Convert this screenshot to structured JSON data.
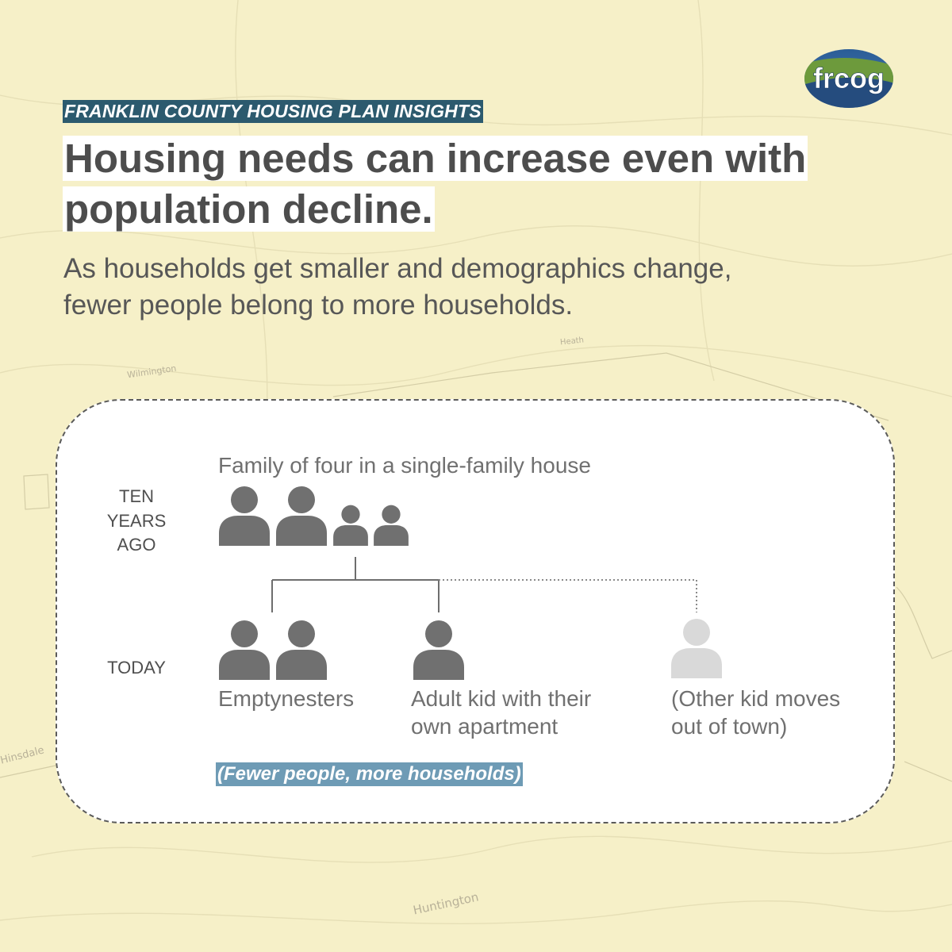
{
  "background": {
    "colors": {
      "paper": "#f6f0c8",
      "panel": "#ffffff",
      "person_dark": "#707070",
      "person_faded": "#d9d9d9",
      "kicker_bg": "#2c5a6e",
      "note_bg": "#6e9bb5"
    },
    "map_labels": [
      "Huntington",
      "Hinsdale",
      "Wilmington",
      "Heath"
    ]
  },
  "logo": {
    "text": "frcog"
  },
  "header": {
    "kicker": "FRANKLIN COUNTY HOUSING PLAN INSIGHTS",
    "headline_line1": "Housing needs can increase even with",
    "headline_line2": "population decline.",
    "subtitle_line1": "As households get smaller and demographics change,",
    "subtitle_line2": "fewer people belong to more households."
  },
  "diagram": {
    "past": {
      "label_lines": [
        "TEN",
        "YEARS",
        "AGO"
      ],
      "caption": "Family of four in a single-family house",
      "icon": "person-icon"
    },
    "today": {
      "label": "TODAY",
      "groups": [
        {
          "caption_lines": [
            "Emptynesters"
          ],
          "count": 2,
          "icon": "person-icon",
          "faded": false
        },
        {
          "caption_lines": [
            "Adult kid with their",
            "own apartment"
          ],
          "count": 1,
          "icon": "person-icon",
          "faded": false
        },
        {
          "caption_lines": [
            "(Other kid moves",
            "out of town)"
          ],
          "count": 1,
          "icon": "person-icon",
          "faded": true
        }
      ]
    },
    "note": "(Fewer people, more households)"
  }
}
